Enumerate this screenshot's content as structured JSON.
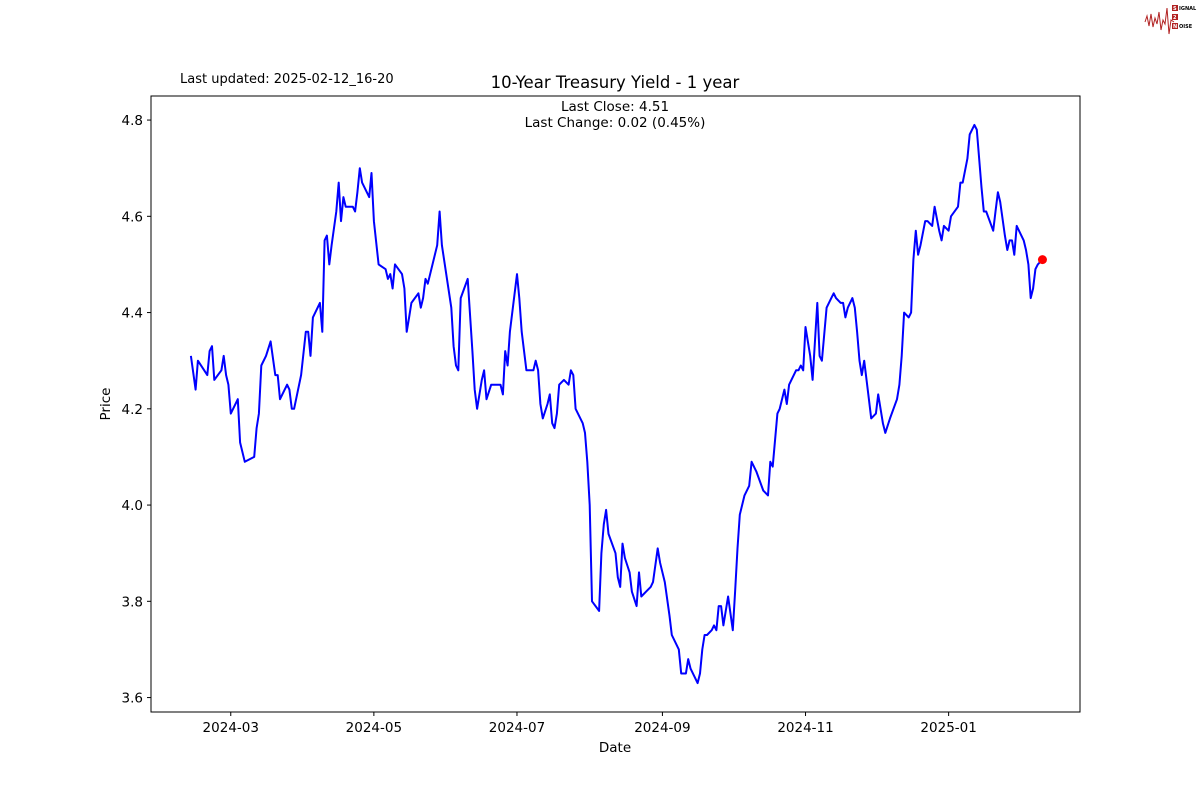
{
  "logo": {
    "text": "SIGNAL 2 NOISE",
    "color": "#b22222"
  },
  "last_updated": "Last updated: 2025-02-12_16-20",
  "chart_data": {
    "type": "line",
    "title": "10-Year Treasury Yield - 1 year",
    "xlabel": "Date",
    "ylabel": "Price",
    "annotations": [
      "Last Close: 4.51",
      "Last Change: 0.02 (0.45%)"
    ],
    "xlim": [
      "2024-01-27",
      "2025-02-26"
    ],
    "ylim": [
      3.57,
      4.85
    ],
    "x_ticks": [
      "2024-03",
      "2024-05",
      "2024-07",
      "2024-09",
      "2024-11",
      "2025-01"
    ],
    "y_ticks": [
      "3.6",
      "3.8",
      "4.0",
      "4.2",
      "4.4",
      "4.6",
      "4.8"
    ],
    "grid": false,
    "line_color": "#0000ff",
    "last_point": {
      "date": "2025-02-10",
      "value": 4.51,
      "color": "#ff0000"
    },
    "points": [
      [
        "2024-02-13",
        4.31
      ],
      [
        "2024-02-15",
        4.24
      ],
      [
        "2024-02-16",
        4.3
      ],
      [
        "2024-02-20",
        4.27
      ],
      [
        "2024-02-21",
        4.32
      ],
      [
        "2024-02-22",
        4.33
      ],
      [
        "2024-02-23",
        4.26
      ],
      [
        "2024-02-26",
        4.28
      ],
      [
        "2024-02-27",
        4.31
      ],
      [
        "2024-02-28",
        4.27
      ],
      [
        "2024-02-29",
        4.25
      ],
      [
        "2024-03-01",
        4.19
      ],
      [
        "2024-03-04",
        4.22
      ],
      [
        "2024-03-05",
        4.13
      ],
      [
        "2024-03-07",
        4.09
      ],
      [
        "2024-03-11",
        4.1
      ],
      [
        "2024-03-12",
        4.16
      ],
      [
        "2024-03-13",
        4.19
      ],
      [
        "2024-03-14",
        4.29
      ],
      [
        "2024-03-16",
        4.31
      ],
      [
        "2024-03-18",
        4.34
      ],
      [
        "2024-03-20",
        4.27
      ],
      [
        "2024-03-21",
        4.27
      ],
      [
        "2024-03-22",
        4.22
      ],
      [
        "2024-03-25",
        4.25
      ],
      [
        "2024-03-26",
        4.24
      ],
      [
        "2024-03-27",
        4.2
      ],
      [
        "2024-03-28",
        4.2
      ],
      [
        "2024-03-31",
        4.27
      ],
      [
        "2024-04-02",
        4.36
      ],
      [
        "2024-04-03",
        4.36
      ],
      [
        "2024-04-04",
        4.31
      ],
      [
        "2024-04-05",
        4.39
      ],
      [
        "2024-04-08",
        4.42
      ],
      [
        "2024-04-09",
        4.36
      ],
      [
        "2024-04-10",
        4.55
      ],
      [
        "2024-04-11",
        4.56
      ],
      [
        "2024-04-12",
        4.5
      ],
      [
        "2024-04-13",
        4.54
      ],
      [
        "2024-04-15",
        4.61
      ],
      [
        "2024-04-16",
        4.67
      ],
      [
        "2024-04-17",
        4.59
      ],
      [
        "2024-04-18",
        4.64
      ],
      [
        "2024-04-19",
        4.62
      ],
      [
        "2024-04-22",
        4.62
      ],
      [
        "2024-04-23",
        4.61
      ],
      [
        "2024-04-24",
        4.65
      ],
      [
        "2024-04-25",
        4.7
      ],
      [
        "2024-04-26",
        4.67
      ],
      [
        "2024-04-29",
        4.64
      ],
      [
        "2024-04-30",
        4.69
      ],
      [
        "2024-05-01",
        4.59
      ],
      [
        "2024-05-03",
        4.5
      ],
      [
        "2024-05-06",
        4.49
      ],
      [
        "2024-05-07",
        4.47
      ],
      [
        "2024-05-08",
        4.48
      ],
      [
        "2024-05-09",
        4.45
      ],
      [
        "2024-05-10",
        4.5
      ],
      [
        "2024-05-13",
        4.48
      ],
      [
        "2024-05-14",
        4.45
      ],
      [
        "2024-05-15",
        4.36
      ],
      [
        "2024-05-16",
        4.39
      ],
      [
        "2024-05-17",
        4.42
      ],
      [
        "2024-05-20",
        4.44
      ],
      [
        "2024-05-21",
        4.41
      ],
      [
        "2024-05-22",
        4.43
      ],
      [
        "2024-05-23",
        4.47
      ],
      [
        "2024-05-24",
        4.46
      ],
      [
        "2024-05-28",
        4.54
      ],
      [
        "2024-05-29",
        4.61
      ],
      [
        "2024-05-30",
        4.54
      ],
      [
        "2024-06-03",
        4.41
      ],
      [
        "2024-06-04",
        4.33
      ],
      [
        "2024-06-05",
        4.29
      ],
      [
        "2024-06-06",
        4.28
      ],
      [
        "2024-06-07",
        4.43
      ],
      [
        "2024-06-10",
        4.47
      ],
      [
        "2024-06-12",
        4.32
      ],
      [
        "2024-06-13",
        4.24
      ],
      [
        "2024-06-14",
        4.2
      ],
      [
        "2024-06-16",
        4.26
      ],
      [
        "2024-06-17",
        4.28
      ],
      [
        "2024-06-18",
        4.22
      ],
      [
        "2024-06-20",
        4.25
      ],
      [
        "2024-06-24",
        4.25
      ],
      [
        "2024-06-25",
        4.23
      ],
      [
        "2024-06-26",
        4.32
      ],
      [
        "2024-06-27",
        4.29
      ],
      [
        "2024-06-28",
        4.36
      ],
      [
        "2024-07-01",
        4.48
      ],
      [
        "2024-07-02",
        4.43
      ],
      [
        "2024-07-03",
        4.36
      ],
      [
        "2024-07-05",
        4.28
      ],
      [
        "2024-07-08",
        4.28
      ],
      [
        "2024-07-09",
        4.3
      ],
      [
        "2024-07-10",
        4.28
      ],
      [
        "2024-07-11",
        4.21
      ],
      [
        "2024-07-12",
        4.18
      ],
      [
        "2024-07-14",
        4.21
      ],
      [
        "2024-07-15",
        4.23
      ],
      [
        "2024-07-16",
        4.17
      ],
      [
        "2024-07-17",
        4.16
      ],
      [
        "2024-07-18",
        4.19
      ],
      [
        "2024-07-19",
        4.25
      ],
      [
        "2024-07-21",
        4.26
      ],
      [
        "2024-07-23",
        4.25
      ],
      [
        "2024-07-24",
        4.28
      ],
      [
        "2024-07-25",
        4.27
      ],
      [
        "2024-07-26",
        4.2
      ],
      [
        "2024-07-29",
        4.17
      ],
      [
        "2024-07-30",
        4.15
      ],
      [
        "2024-07-31",
        4.09
      ],
      [
        "2024-08-01",
        4.0
      ],
      [
        "2024-08-02",
        3.8
      ],
      [
        "2024-08-05",
        3.78
      ],
      [
        "2024-08-06",
        3.9
      ],
      [
        "2024-08-07",
        3.96
      ],
      [
        "2024-08-08",
        3.99
      ],
      [
        "2024-08-09",
        3.94
      ],
      [
        "2024-08-12",
        3.9
      ],
      [
        "2024-08-13",
        3.85
      ],
      [
        "2024-08-14",
        3.83
      ],
      [
        "2024-08-15",
        3.92
      ],
      [
        "2024-08-16",
        3.89
      ],
      [
        "2024-08-18",
        3.86
      ],
      [
        "2024-08-19",
        3.82
      ],
      [
        "2024-08-21",
        3.79
      ],
      [
        "2024-08-22",
        3.86
      ],
      [
        "2024-08-23",
        3.81
      ],
      [
        "2024-08-25",
        3.82
      ],
      [
        "2024-08-27",
        3.83
      ],
      [
        "2024-08-28",
        3.84
      ],
      [
        "2024-08-30",
        3.91
      ],
      [
        "2024-08-31",
        3.88
      ],
      [
        "2024-09-02",
        3.84
      ],
      [
        "2024-09-04",
        3.77
      ],
      [
        "2024-09-05",
        3.73
      ],
      [
        "2024-09-08",
        3.7
      ],
      [
        "2024-09-09",
        3.65
      ],
      [
        "2024-09-11",
        3.65
      ],
      [
        "2024-09-12",
        3.68
      ],
      [
        "2024-09-13",
        3.66
      ],
      [
        "2024-09-15",
        3.64
      ],
      [
        "2024-09-16",
        3.63
      ],
      [
        "2024-09-17",
        3.65
      ],
      [
        "2024-09-18",
        3.7
      ],
      [
        "2024-09-19",
        3.73
      ],
      [
        "2024-09-20",
        3.73
      ],
      [
        "2024-09-22",
        3.74
      ],
      [
        "2024-09-23",
        3.75
      ],
      [
        "2024-09-24",
        3.74
      ],
      [
        "2024-09-25",
        3.79
      ],
      [
        "2024-09-26",
        3.79
      ],
      [
        "2024-09-27",
        3.75
      ],
      [
        "2024-09-29",
        3.81
      ],
      [
        "2024-10-01",
        3.74
      ],
      [
        "2024-10-02",
        3.82
      ],
      [
        "2024-10-03",
        3.91
      ],
      [
        "2024-10-04",
        3.98
      ],
      [
        "2024-10-06",
        4.02
      ],
      [
        "2024-10-08",
        4.04
      ],
      [
        "2024-10-09",
        4.09
      ],
      [
        "2024-10-11",
        4.07
      ],
      [
        "2024-10-14",
        4.03
      ],
      [
        "2024-10-16",
        4.02
      ],
      [
        "2024-10-17",
        4.09
      ],
      [
        "2024-10-18",
        4.08
      ],
      [
        "2024-10-20",
        4.19
      ],
      [
        "2024-10-21",
        4.2
      ],
      [
        "2024-10-23",
        4.24
      ],
      [
        "2024-10-24",
        4.21
      ],
      [
        "2024-10-25",
        4.25
      ],
      [
        "2024-10-28",
        4.28
      ],
      [
        "2024-10-29",
        4.28
      ],
      [
        "2024-10-30",
        4.29
      ],
      [
        "2024-10-31",
        4.28
      ],
      [
        "2024-11-01",
        4.37
      ],
      [
        "2024-11-03",
        4.31
      ],
      [
        "2024-11-04",
        4.26
      ],
      [
        "2024-11-06",
        4.42
      ],
      [
        "2024-11-07",
        4.31
      ],
      [
        "2024-11-08",
        4.3
      ],
      [
        "2024-11-10",
        4.41
      ],
      [
        "2024-11-12",
        4.43
      ],
      [
        "2024-11-13",
        4.44
      ],
      [
        "2024-11-14",
        4.43
      ],
      [
        "2024-11-16",
        4.42
      ],
      [
        "2024-11-17",
        4.42
      ],
      [
        "2024-11-18",
        4.39
      ],
      [
        "2024-11-19",
        4.41
      ],
      [
        "2024-11-21",
        4.43
      ],
      [
        "2024-11-22",
        4.41
      ],
      [
        "2024-11-23",
        4.36
      ],
      [
        "2024-11-24",
        4.3
      ],
      [
        "2024-11-25",
        4.27
      ],
      [
        "2024-11-26",
        4.3
      ],
      [
        "2024-11-28",
        4.22
      ],
      [
        "2024-11-29",
        4.18
      ],
      [
        "2024-12-01",
        4.19
      ],
      [
        "2024-12-02",
        4.23
      ],
      [
        "2024-12-04",
        4.17
      ],
      [
        "2024-12-05",
        4.15
      ],
      [
        "2024-12-07",
        4.18
      ],
      [
        "2024-12-10",
        4.22
      ],
      [
        "2024-12-11",
        4.25
      ],
      [
        "2024-12-12",
        4.31
      ],
      [
        "2024-12-13",
        4.4
      ],
      [
        "2024-12-15",
        4.39
      ],
      [
        "2024-12-16",
        4.4
      ],
      [
        "2024-12-17",
        4.51
      ],
      [
        "2024-12-18",
        4.57
      ],
      [
        "2024-12-19",
        4.52
      ],
      [
        "2024-12-20",
        4.54
      ],
      [
        "2024-12-22",
        4.59
      ],
      [
        "2024-12-23",
        4.59
      ],
      [
        "2024-12-25",
        4.58
      ],
      [
        "2024-12-26",
        4.62
      ],
      [
        "2024-12-28",
        4.57
      ],
      [
        "2024-12-29",
        4.55
      ],
      [
        "2024-12-30",
        4.58
      ],
      [
        "2025-01-01",
        4.57
      ],
      [
        "2025-01-02",
        4.6
      ],
      [
        "2025-01-05",
        4.62
      ],
      [
        "2025-01-06",
        4.67
      ],
      [
        "2025-01-07",
        4.67
      ],
      [
        "2025-01-09",
        4.72
      ],
      [
        "2025-01-10",
        4.77
      ],
      [
        "2025-01-12",
        4.79
      ],
      [
        "2025-01-13",
        4.78
      ],
      [
        "2025-01-15",
        4.66
      ],
      [
        "2025-01-16",
        4.61
      ],
      [
        "2025-01-17",
        4.61
      ],
      [
        "2025-01-20",
        4.57
      ],
      [
        "2025-01-21",
        4.61
      ],
      [
        "2025-01-22",
        4.65
      ],
      [
        "2025-01-23",
        4.63
      ],
      [
        "2025-01-25",
        4.56
      ],
      [
        "2025-01-26",
        4.53
      ],
      [
        "2025-01-27",
        4.55
      ],
      [
        "2025-01-28",
        4.55
      ],
      [
        "2025-01-29",
        4.52
      ],
      [
        "2025-01-30",
        4.58
      ],
      [
        "2025-02-02",
        4.55
      ],
      [
        "2025-02-03",
        4.53
      ],
      [
        "2025-02-04",
        4.5
      ],
      [
        "2025-02-05",
        4.43
      ],
      [
        "2025-02-06",
        4.45
      ],
      [
        "2025-02-07",
        4.49
      ],
      [
        "2025-02-08",
        4.5
      ],
      [
        "2025-02-10",
        4.51
      ]
    ]
  }
}
